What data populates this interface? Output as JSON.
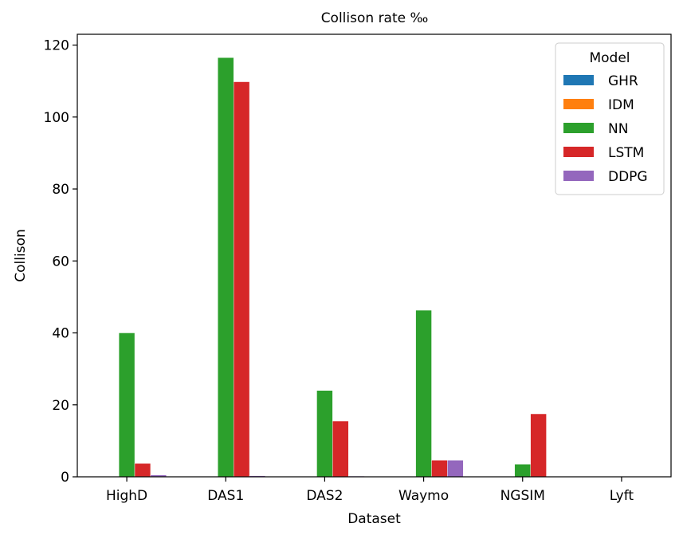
{
  "chart_data": {
    "type": "bar",
    "title": "Collison rate ‰",
    "xlabel": "Dataset",
    "ylabel": "Collison",
    "ylim": [
      0,
      123
    ],
    "yticks": [
      0,
      20,
      40,
      60,
      80,
      100,
      120
    ],
    "categories": [
      "HighD",
      "DAS1",
      "DAS2",
      "Waymo",
      "NGSIM",
      "Lyft"
    ],
    "legend": {
      "title": "Model",
      "placement": "top-right"
    },
    "grid": false,
    "series": [
      {
        "name": "GHR",
        "color": "#1f77b4",
        "values": [
          0,
          0,
          0,
          0,
          0,
          0
        ]
      },
      {
        "name": "IDM",
        "color": "#ff7f0e",
        "values": [
          0,
          0,
          0,
          0,
          0,
          0
        ]
      },
      {
        "name": "NN",
        "color": "#2ca02c",
        "values": [
          40,
          116.5,
          24,
          46.3,
          3.5,
          0
        ]
      },
      {
        "name": "LSTM",
        "color": "#d62728",
        "values": [
          3.7,
          109.8,
          15.5,
          4.6,
          17.5,
          0
        ]
      },
      {
        "name": "DDPG",
        "color": "#9467bd",
        "values": [
          0.5,
          0.3,
          0.2,
          4.6,
          0,
          0
        ]
      }
    ]
  }
}
